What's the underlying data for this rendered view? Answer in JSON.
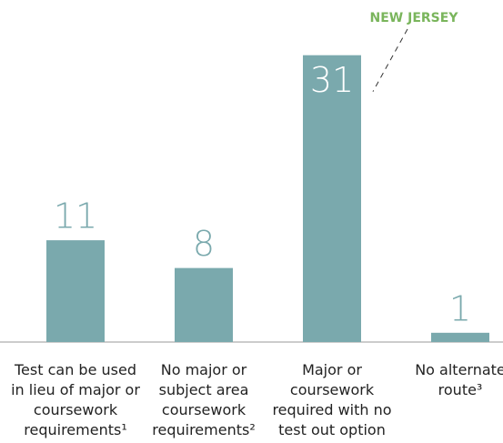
{
  "chart_data": {
    "type": "bar",
    "categories": [
      "Test can be used in lieu of major or coursework requirements¹",
      "No major or subject area coursework requirements²",
      "Major or coursework required with no test out option",
      "No alternate route³"
    ],
    "values": [
      11,
      8,
      31,
      1
    ],
    "color": "#7aa9ad",
    "ylim": [
      0,
      35
    ],
    "annotation": {
      "text": "NEW JERSEY",
      "category_index": 2,
      "color": "#7ab55c"
    }
  }
}
